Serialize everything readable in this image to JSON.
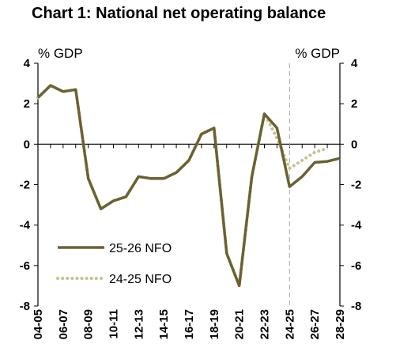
{
  "chart_data": {
    "type": "line",
    "title": "Chart 1: National net operating balance",
    "ylabel_left": "% GDP",
    "ylabel_right": "% GDP",
    "ylim": [
      -8,
      4
    ],
    "yticks": [
      "4",
      "2",
      "0",
      "-2",
      "-4",
      "-6",
      "-8"
    ],
    "ytick_values": [
      4,
      2,
      0,
      -2,
      -4,
      -6,
      -8
    ],
    "x": [
      "04-05",
      "05-06",
      "06-07",
      "07-08",
      "08-09",
      "09-10",
      "10-11",
      "11-12",
      "12-13",
      "13-14",
      "14-15",
      "15-16",
      "16-17",
      "17-18",
      "18-19",
      "19-20",
      "20-21",
      "21-22",
      "22-23",
      "23-24",
      "24-25",
      "25-26",
      "26-27",
      "27-28",
      "28-29"
    ],
    "xtick_labels": [
      "04-05",
      "06-07",
      "08-09",
      "10-11",
      "12-13",
      "14-15",
      "16-17",
      "18-19",
      "20-21",
      "22-23",
      "24-25",
      "26-27",
      "28-29"
    ],
    "forecast_divider_at": "24-25",
    "legend_position": "bottom-left",
    "series": [
      {
        "name": "25-26 NFO",
        "color": "#6b6233",
        "style": "solid",
        "values": [
          2.3,
          2.9,
          2.6,
          2.7,
          -1.7,
          -3.2,
          -2.8,
          -2.6,
          -1.6,
          -1.7,
          -1.7,
          -1.4,
          -0.8,
          0.5,
          0.8,
          -5.4,
          -7.0,
          -1.6,
          1.5,
          0.8,
          -2.1,
          -1.6,
          -0.9,
          -0.85,
          -0.7
        ]
      },
      {
        "name": "24-25 NFO",
        "color": "#c7c28f",
        "style": "dotted",
        "values": [
          2.3,
          2.9,
          2.6,
          2.7,
          -1.7,
          -3.2,
          -2.8,
          -2.6,
          -1.6,
          -1.7,
          -1.7,
          -1.4,
          -0.8,
          0.5,
          0.8,
          -5.4,
          -7.0,
          -1.6,
          1.5,
          0.3,
          -1.2,
          -0.8,
          -0.4,
          -0.2,
          null
        ]
      }
    ]
  }
}
